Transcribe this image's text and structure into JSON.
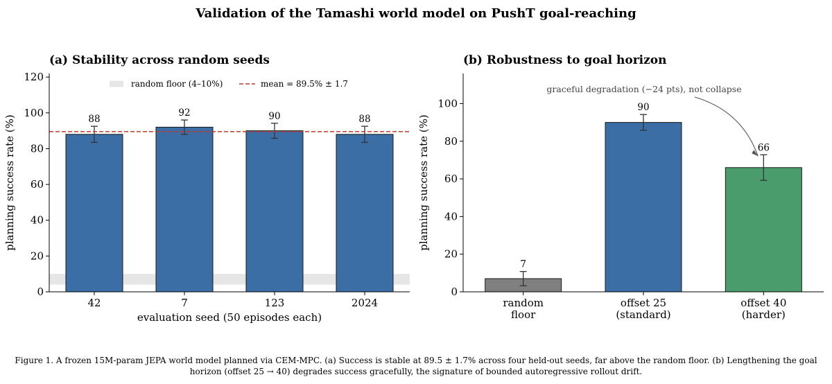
{
  "figure_title": "Validation of the Tamashi world model on PushT goal-reaching",
  "caption": {
    "line1": "Figure 1.  A frozen 15M-param JEPA world model planned via CEM-MPC. (a) Success is stable at 89.5 ± 1.7% across four held-out seeds, far above the random floor. (b) Lengthening the goal",
    "line2": "horizon (offset 25 → 40) degrades success gracefully, the signature of bounded autoregressive rollout drift."
  },
  "chart_data": [
    {
      "type": "bar",
      "panel_title": "(a)  Stability across random seeds",
      "categories": [
        "42",
        "7",
        "123",
        "2024"
      ],
      "values": [
        88,
        92,
        90,
        88
      ],
      "errors": [
        4.5,
        4,
        4.2,
        4.5
      ],
      "data_labels": [
        "88",
        "92",
        "90",
        "88"
      ],
      "bar_color": "#3a6ea5",
      "xlabel": "evaluation seed (50 episodes each)",
      "ylabel": "planning success rate (%)",
      "ylim": [
        0,
        122
      ],
      "yticks": [
        0,
        20,
        40,
        60,
        80,
        100,
        120
      ],
      "mean_line": {
        "value": 89.5,
        "color": "#c0392b",
        "label": "mean = 89.5% ± 1.7"
      },
      "random_floor_band": {
        "range": [
          4,
          10
        ],
        "color": "#e6e6e6",
        "label": "random floor (4–10%)"
      },
      "legend_position": "top-center",
      "grid": false
    },
    {
      "type": "bar",
      "panel_title": "(b)  Robustness to goal horizon",
      "categories": [
        [
          "random",
          "floor"
        ],
        [
          "offset 25",
          "(standard)"
        ],
        [
          "offset 40",
          "(harder)"
        ]
      ],
      "values": [
        7,
        90,
        66
      ],
      "errors": [
        3.8,
        4.2,
        6.8
      ],
      "data_labels": [
        "7",
        "90",
        "66"
      ],
      "bar_colors": [
        "#808080",
        "#3a6ea5",
        "#4a9c6d"
      ],
      "xlabel": "",
      "ylabel": "planning success rate (%)",
      "ylim": [
        0,
        116
      ],
      "yticks": [
        0,
        20,
        40,
        60,
        80,
        100
      ],
      "annotation": {
        "text": "graceful degradation (−24 pts), not collapse",
        "points_to_category": 2
      },
      "grid": false
    }
  ]
}
